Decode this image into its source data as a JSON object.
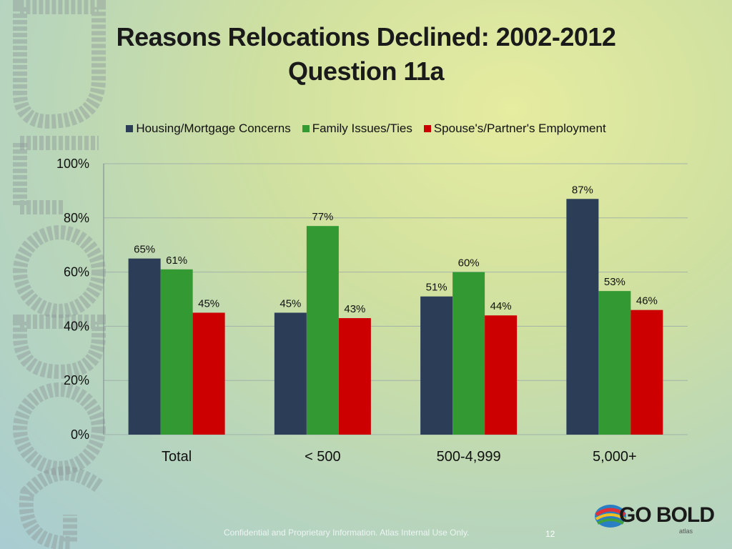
{
  "title": {
    "line1": "Reasons Relocations Declined: 2002-2012",
    "line2": "Question 11a"
  },
  "chart_data": {
    "type": "bar",
    "categories": [
      "Total",
      "< 500",
      "500-4,999",
      "5,000+"
    ],
    "series": [
      {
        "name": "Housing/Mortgage Concerns",
        "color": "#2b3d57",
        "values": [
          65,
          45,
          51,
          87
        ]
      },
      {
        "name": "Family Issues/Ties",
        "color": "#339a33",
        "values": [
          61,
          77,
          60,
          53
        ]
      },
      {
        "name": "Spouse's/Partner's Employment",
        "color": "#cc0000",
        "values": [
          45,
          43,
          44,
          46
        ]
      }
    ],
    "yticks": [
      "0%",
      "20%",
      "40%",
      "60%",
      "80%",
      "100%"
    ],
    "ylim": [
      0,
      100
    ],
    "value_suffix": "%",
    "grid": true,
    "legend": "top"
  },
  "footer": {
    "confidential": "Confidential and Proprietary Information. Atlas Internal Use Only.",
    "page_number": "12"
  },
  "logo": {
    "text": "GO BOLD",
    "sub": "atlas"
  },
  "watermark": {
    "text": "GO BOLD",
    "color": "#8f9a98"
  }
}
